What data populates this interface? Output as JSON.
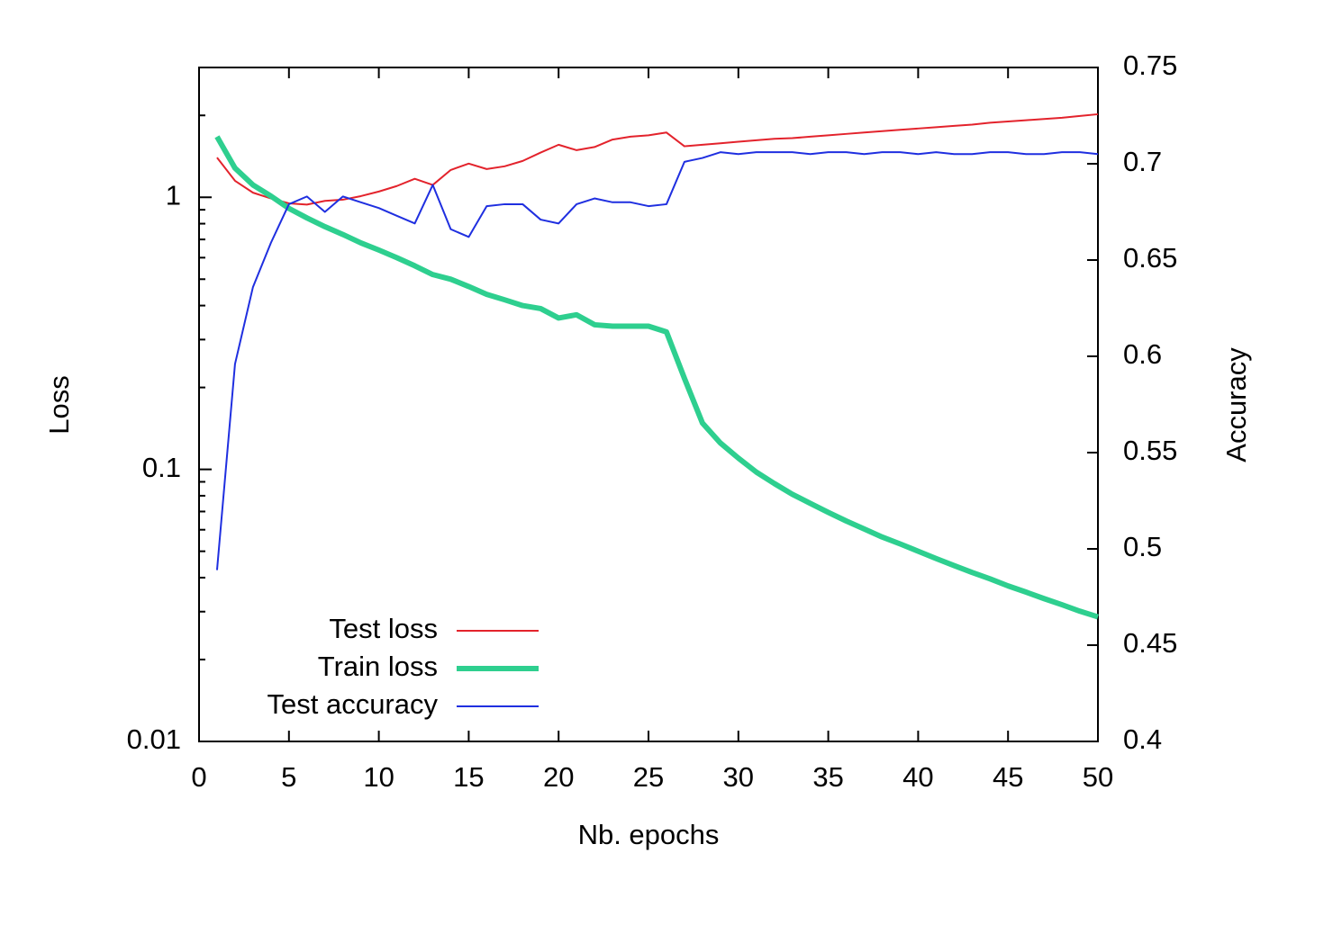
{
  "chart_data": {
    "type": "line",
    "x_label": "Nb. epochs",
    "y_label": "Loss",
    "y2_label": "Accuracy",
    "yscale": "log",
    "xlim": [
      0,
      50
    ],
    "xticks": [
      0,
      5,
      10,
      15,
      20,
      25,
      30,
      35,
      40,
      45,
      50
    ],
    "ylim": [
      0.01,
      3
    ],
    "yticks": [
      0.01,
      0.1,
      1
    ],
    "yminorticks": [
      0.02,
      0.03,
      0.04,
      0.05,
      0.06,
      0.07,
      0.08,
      0.09,
      0.2,
      0.3,
      0.4,
      0.5,
      0.6,
      0.7,
      0.8,
      0.9,
      2
    ],
    "y2lim": [
      0.4,
      0.75
    ],
    "y2ticks": [
      0.4,
      0.45,
      0.5,
      0.55,
      0.6,
      0.65,
      0.7,
      0.75
    ],
    "legend": "lower left",
    "x": [
      1,
      2,
      3,
      4,
      5,
      6,
      7,
      8,
      9,
      10,
      11,
      12,
      13,
      14,
      15,
      16,
      17,
      18,
      19,
      20,
      21,
      22,
      23,
      24,
      25,
      26,
      27,
      28,
      29,
      30,
      31,
      32,
      33,
      34,
      35,
      36,
      37,
      38,
      39,
      40,
      41,
      42,
      43,
      44,
      45,
      46,
      47,
      48,
      49,
      50
    ],
    "series": [
      {
        "name": "Test loss",
        "color": "#e3232c",
        "line_width": 2,
        "values": [
          1.4,
          1.15,
          1.04,
          0.99,
          0.95,
          0.94,
          0.97,
          0.98,
          1.01,
          1.05,
          1.1,
          1.17,
          1.11,
          1.26,
          1.33,
          1.27,
          1.3,
          1.36,
          1.46,
          1.56,
          1.49,
          1.53,
          1.63,
          1.67,
          1.69,
          1.73,
          1.54,
          1.56,
          1.58,
          1.6,
          1.62,
          1.64,
          1.65,
          1.67,
          1.69,
          1.71,
          1.73,
          1.75,
          1.77,
          1.79,
          1.81,
          1.83,
          1.85,
          1.88,
          1.9,
          1.92,
          1.94,
          1.96,
          1.99,
          2.02
        ]
      },
      {
        "name": "Train loss",
        "color": "#2ecf8f",
        "line_width": 6,
        "values": [
          1.67,
          1.28,
          1.11,
          1.01,
          0.91,
          0.84,
          0.78,
          0.73,
          0.68,
          0.64,
          0.6,
          0.56,
          0.52,
          0.5,
          0.47,
          0.44,
          0.42,
          0.4,
          0.39,
          0.36,
          0.37,
          0.34,
          0.336,
          0.336,
          0.336,
          0.32,
          0.216,
          0.148,
          0.125,
          0.11,
          0.0977,
          0.0887,
          0.081,
          0.075,
          0.0695,
          0.0646,
          0.0604,
          0.0564,
          0.0532,
          0.05,
          0.047,
          0.0443,
          0.0418,
          0.0396,
          0.0373,
          0.0354,
          0.0335,
          0.0318,
          0.0301,
          0.0287
        ]
      },
      {
        "name": "Test accuracy",
        "color": "#1f2fe0",
        "line_width": 2,
        "axis": "y2",
        "values": [
          0.489,
          0.596,
          0.636,
          0.659,
          0.679,
          0.683,
          0.675,
          0.683,
          0.68,
          0.677,
          0.673,
          0.669,
          0.689,
          0.666,
          0.662,
          0.678,
          0.679,
          0.679,
          0.671,
          0.669,
          0.679,
          0.682,
          0.68,
          0.68,
          0.678,
          0.679,
          0.701,
          0.703,
          0.706,
          0.705,
          0.706,
          0.706,
          0.706,
          0.705,
          0.706,
          0.706,
          0.705,
          0.706,
          0.706,
          0.705,
          0.706,
          0.705,
          0.705,
          0.706,
          0.706,
          0.705,
          0.705,
          0.706,
          0.706,
          0.705
        ]
      }
    ]
  }
}
